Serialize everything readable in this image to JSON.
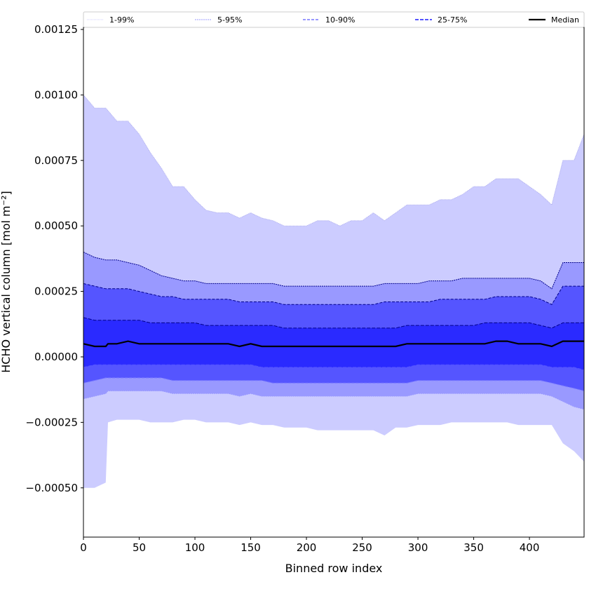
{
  "chart_data": {
    "type": "area",
    "title": "",
    "xlabel": "Binned row index",
    "ylabel": "HCHO vertical column [mol m⁻²]",
    "xlim": [
      0,
      449
    ],
    "ylim": [
      -0.000688,
      0.001258
    ],
    "xticks": [
      0,
      50,
      100,
      150,
      200,
      250,
      300,
      350,
      400
    ],
    "xtick_labels": [
      "0",
      "50",
      "100",
      "150",
      "200",
      "250",
      "300",
      "350",
      "400"
    ],
    "yticks": [
      0.00125,
      0.001,
      0.00075,
      0.0005,
      0.00025,
      0,
      -0.00025,
      -0.0005
    ],
    "ytick_labels": [
      "0.00125",
      "0.00100",
      "0.00075",
      "0.00050",
      "0.00025",
      "0.00000",
      "−0.00025",
      "−0.00050"
    ],
    "legend_placement": "top (above axes, horizontal)",
    "x": [
      0,
      10,
      20,
      22,
      30,
      40,
      50,
      60,
      70,
      80,
      90,
      100,
      110,
      120,
      130,
      140,
      150,
      160,
      170,
      180,
      190,
      200,
      210,
      220,
      230,
      240,
      250,
      260,
      270,
      280,
      290,
      300,
      310,
      320,
      330,
      340,
      350,
      360,
      370,
      380,
      390,
      400,
      410,
      420,
      430,
      440,
      449
    ],
    "bands": [
      {
        "name": "1-99%",
        "color": "#ccccff",
        "line_color": "#ccccff",
        "upper": [
          0.001,
          0.00095,
          0.00095,
          0.00094,
          0.0009,
          0.0009,
          0.00085,
          0.00078,
          0.00072,
          0.00065,
          0.00065,
          0.0006,
          0.00056,
          0.00055,
          0.00055,
          0.00053,
          0.00055,
          0.00053,
          0.00052,
          0.0005,
          0.0005,
          0.0005,
          0.00052,
          0.00052,
          0.0005,
          0.00052,
          0.00052,
          0.00055,
          0.00052,
          0.00055,
          0.00058,
          0.00058,
          0.00058,
          0.0006,
          0.0006,
          0.00062,
          0.00065,
          0.00065,
          0.00068,
          0.00068,
          0.00068,
          0.00065,
          0.00062,
          0.00058,
          0.00075,
          0.00075,
          0.00085
        ],
        "lower": [
          -0.0005,
          -0.0005,
          -0.00048,
          -0.00025,
          -0.00024,
          -0.00024,
          -0.00024,
          -0.00025,
          -0.00025,
          -0.00025,
          -0.00024,
          -0.00024,
          -0.00025,
          -0.00025,
          -0.00025,
          -0.00026,
          -0.00025,
          -0.00026,
          -0.00026,
          -0.00027,
          -0.00027,
          -0.00027,
          -0.00028,
          -0.00028,
          -0.00028,
          -0.00028,
          -0.00028,
          -0.00028,
          -0.0003,
          -0.00027,
          -0.00027,
          -0.00026,
          -0.00026,
          -0.00026,
          -0.00025,
          -0.00025,
          -0.00025,
          -0.00025,
          -0.00025,
          -0.00025,
          -0.00026,
          -0.00026,
          -0.00026,
          -0.00026,
          -0.00033,
          -0.00036,
          -0.0004
        ]
      },
      {
        "name": "5-95%",
        "color": "#9999ff",
        "line_color": "#9999ff",
        "upper": [
          0.0004,
          0.00038,
          0.00037,
          0.00037,
          0.00037,
          0.00036,
          0.00035,
          0.00033,
          0.00031,
          0.0003,
          0.00029,
          0.00029,
          0.00028,
          0.00028,
          0.00028,
          0.00028,
          0.00028,
          0.00028,
          0.00028,
          0.00027,
          0.00027,
          0.00027,
          0.00027,
          0.00027,
          0.00027,
          0.00027,
          0.00027,
          0.00027,
          0.00028,
          0.00028,
          0.00028,
          0.00028,
          0.00029,
          0.00029,
          0.00029,
          0.0003,
          0.0003,
          0.0003,
          0.0003,
          0.0003,
          0.0003,
          0.0003,
          0.00029,
          0.00026,
          0.00036,
          0.00036,
          0.00036
        ],
        "lower": [
          -0.00016,
          -0.00015,
          -0.00014,
          -0.00013,
          -0.00013,
          -0.00013,
          -0.00013,
          -0.00013,
          -0.00013,
          -0.00014,
          -0.00014,
          -0.00014,
          -0.00014,
          -0.00014,
          -0.00014,
          -0.00015,
          -0.00014,
          -0.00015,
          -0.00015,
          -0.00015,
          -0.00015,
          -0.00015,
          -0.00015,
          -0.00015,
          -0.00015,
          -0.00015,
          -0.00015,
          -0.00015,
          -0.00015,
          -0.00015,
          -0.00015,
          -0.00014,
          -0.00014,
          -0.00014,
          -0.00014,
          -0.00014,
          -0.00014,
          -0.00014,
          -0.00014,
          -0.00014,
          -0.00014,
          -0.00014,
          -0.00014,
          -0.00015,
          -0.00017,
          -0.00019,
          -0.0002
        ]
      },
      {
        "name": "10-90%",
        "color": "#5555ff",
        "line_color": "#7777ff",
        "upper": [
          0.00028,
          0.00027,
          0.00026,
          0.00026,
          0.00026,
          0.00026,
          0.00025,
          0.00024,
          0.00023,
          0.00023,
          0.00022,
          0.00022,
          0.00022,
          0.00022,
          0.00022,
          0.00021,
          0.00021,
          0.00021,
          0.00021,
          0.0002,
          0.0002,
          0.0002,
          0.0002,
          0.0002,
          0.0002,
          0.0002,
          0.0002,
          0.0002,
          0.00021,
          0.00021,
          0.00021,
          0.00021,
          0.00021,
          0.00022,
          0.00022,
          0.00022,
          0.00022,
          0.00022,
          0.00023,
          0.00023,
          0.00023,
          0.00023,
          0.00022,
          0.0002,
          0.00027,
          0.00027,
          0.00027
        ],
        "lower": [
          -0.0001,
          -9e-05,
          -8e-05,
          -8e-05,
          -8e-05,
          -8e-05,
          -8e-05,
          -8e-05,
          -8e-05,
          -9e-05,
          -9e-05,
          -9e-05,
          -9e-05,
          -9e-05,
          -9e-05,
          -9e-05,
          -9e-05,
          -9e-05,
          -0.0001,
          -0.0001,
          -0.0001,
          -0.0001,
          -0.0001,
          -0.0001,
          -0.0001,
          -0.0001,
          -0.0001,
          -0.0001,
          -0.0001,
          -0.0001,
          -0.0001,
          -9e-05,
          -9e-05,
          -9e-05,
          -9e-05,
          -9e-05,
          -9e-05,
          -9e-05,
          -9e-05,
          -9e-05,
          -9e-05,
          -9e-05,
          -9e-05,
          -0.0001,
          -0.00011,
          -0.00012,
          -0.00013
        ]
      },
      {
        "name": "25-75%",
        "color": "#2a2aff",
        "line_color": "#5555ff",
        "upper": [
          0.00015,
          0.00014,
          0.00014,
          0.00014,
          0.00014,
          0.00014,
          0.00014,
          0.00013,
          0.00013,
          0.00013,
          0.00013,
          0.00013,
          0.00012,
          0.00012,
          0.00012,
          0.00012,
          0.00012,
          0.00012,
          0.00012,
          0.00011,
          0.00011,
          0.00011,
          0.00011,
          0.00011,
          0.00011,
          0.00011,
          0.00011,
          0.00011,
          0.00011,
          0.00011,
          0.00012,
          0.00012,
          0.00012,
          0.00012,
          0.00012,
          0.00012,
          0.00012,
          0.00013,
          0.00013,
          0.00013,
          0.00013,
          0.00013,
          0.00012,
          0.00011,
          0.00013,
          0.00013,
          0.00013
        ],
        "lower": [
          -4e-05,
          -3e-05,
          -3e-05,
          -3e-05,
          -3e-05,
          -3e-05,
          -3e-05,
          -3e-05,
          -3e-05,
          -3e-05,
          -3e-05,
          -3e-05,
          -3e-05,
          -3e-05,
          -3e-05,
          -3e-05,
          -3e-05,
          -4e-05,
          -4e-05,
          -4e-05,
          -4e-05,
          -4e-05,
          -4e-05,
          -4e-05,
          -4e-05,
          -4e-05,
          -4e-05,
          -4e-05,
          -4e-05,
          -4e-05,
          -4e-05,
          -3e-05,
          -3e-05,
          -3e-05,
          -3e-05,
          -3e-05,
          -3e-05,
          -3e-05,
          -3e-05,
          -3e-05,
          -3e-05,
          -3e-05,
          -3e-05,
          -4e-05,
          -4e-05,
          -4e-05,
          -5e-05
        ]
      }
    ],
    "median": {
      "name": "Median",
      "color": "#000000",
      "values": [
        5e-05,
        4e-05,
        4e-05,
        5e-05,
        5e-05,
        6e-05,
        5e-05,
        5e-05,
        5e-05,
        5e-05,
        5e-05,
        5e-05,
        5e-05,
        5e-05,
        5e-05,
        4e-05,
        5e-05,
        4e-05,
        4e-05,
        4e-05,
        4e-05,
        4e-05,
        4e-05,
        4e-05,
        4e-05,
        4e-05,
        4e-05,
        4e-05,
        4e-05,
        4e-05,
        5e-05,
        5e-05,
        5e-05,
        5e-05,
        5e-05,
        5e-05,
        5e-05,
        5e-05,
        6e-05,
        6e-05,
        5e-05,
        5e-05,
        5e-05,
        4e-05,
        6e-05,
        6e-05,
        6e-05
      ]
    },
    "edge_line_color": "#00008b"
  }
}
